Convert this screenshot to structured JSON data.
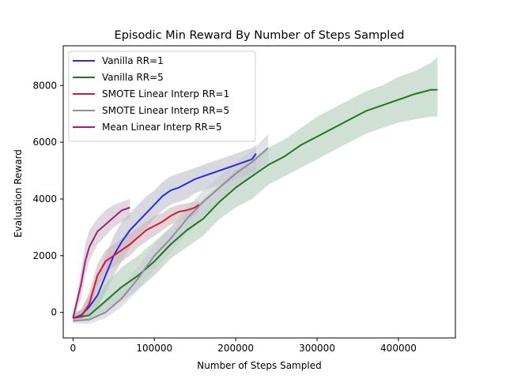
{
  "chart_data": {
    "type": "line",
    "title": "Episodic Min Reward By Number of Steps Sampled",
    "xlabel": "Number of Steps Sampled",
    "ylabel": "Evaluation Reward",
    "xlim": [
      -12000,
      470000
    ],
    "ylim": [
      -900,
      9400
    ],
    "xticks": [
      0,
      100000,
      200000,
      300000,
      400000
    ],
    "xtick_labels": [
      "0",
      "100000",
      "200000",
      "300000",
      "400000"
    ],
    "yticks": [
      0,
      2000,
      4000,
      6000,
      8000
    ],
    "ytick_labels": [
      "0",
      "2000",
      "4000",
      "6000",
      "8000"
    ],
    "grid": false,
    "legend_position": "upper-left",
    "series": [
      {
        "name": "Vanilla RR=1",
        "color": "#2a2ae0",
        "band_color": "#b8b8c8",
        "x": [
          0,
          10000,
          20000,
          30000,
          40000,
          50000,
          60000,
          70000,
          80000,
          90000,
          100000,
          110000,
          120000,
          130000,
          140000,
          150000,
          160000,
          170000,
          180000,
          190000,
          200000,
          210000,
          220000,
          225000
        ],
        "y": [
          -200,
          -100,
          200,
          600,
          1300,
          2000,
          2500,
          2900,
          3200,
          3500,
          3800,
          4100,
          4300,
          4400,
          4550,
          4700,
          4800,
          4900,
          5000,
          5100,
          5200,
          5300,
          5400,
          5600
        ],
        "band_low": [
          -300,
          -250,
          -100,
          200,
          700,
          1300,
          1800,
          2300,
          2700,
          3000,
          3300,
          3600,
          3800,
          3900,
          4000,
          4200,
          4300,
          4400,
          4500,
          4600,
          4700,
          4800,
          4900,
          5000
        ],
        "band_high": [
          -100,
          100,
          600,
          1200,
          2000,
          2700,
          3200,
          3500,
          3800,
          4100,
          4300,
          4600,
          4800,
          4900,
          5000,
          5100,
          5200,
          5300,
          5400,
          5500,
          5600,
          5700,
          5800,
          5900
        ]
      },
      {
        "name": "Vanilla RR=5",
        "color": "#1a7a1a",
        "band_color": "#a9c7b0",
        "x": [
          0,
          20000,
          40000,
          60000,
          80000,
          100000,
          120000,
          140000,
          160000,
          180000,
          200000,
          220000,
          240000,
          260000,
          280000,
          300000,
          320000,
          340000,
          360000,
          380000,
          400000,
          420000,
          440000,
          448000
        ],
        "y": [
          -200,
          -100,
          400,
          900,
          1300,
          1800,
          2400,
          2900,
          3300,
          3900,
          4400,
          4800,
          5200,
          5500,
          5900,
          6200,
          6500,
          6800,
          7100,
          7300,
          7500,
          7700,
          7850,
          7850
        ],
        "band_low": [
          -300,
          -300,
          0,
          400,
          800,
          1300,
          1900,
          2300,
          2700,
          3300,
          3700,
          4000,
          4500,
          4800,
          5100,
          5400,
          5700,
          6000,
          6300,
          6500,
          6700,
          6800,
          6900,
          6900
        ],
        "band_high": [
          0,
          200,
          1000,
          1600,
          2000,
          2500,
          3000,
          3500,
          4000,
          4500,
          5000,
          5400,
          5800,
          6100,
          6500,
          6900,
          7200,
          7500,
          7800,
          8000,
          8300,
          8500,
          8800,
          9000
        ]
      },
      {
        "name": "SMOTE Linear Interp RR=1",
        "color": "#dc143c",
        "band_color": "#c8b0b8",
        "x": [
          0,
          10000,
          20000,
          30000,
          40000,
          50000,
          60000,
          70000,
          80000,
          90000,
          100000,
          110000,
          120000,
          130000,
          140000,
          150000,
          155000
        ],
        "y": [
          -200,
          -150,
          300,
          1300,
          1800,
          2000,
          2200,
          2400,
          2650,
          2900,
          3050,
          3200,
          3400,
          3550,
          3600,
          3700,
          3800
        ],
        "band_low": [
          -300,
          -300,
          0,
          900,
          1400,
          1600,
          1800,
          2000,
          2300,
          2500,
          2700,
          2900,
          3100,
          3200,
          3300,
          3400,
          3500
        ],
        "band_high": [
          -100,
          100,
          700,
          1700,
          2200,
          2400,
          2600,
          2800,
          3000,
          3200,
          3400,
          3500,
          3700,
          3800,
          3850,
          3900,
          3950
        ]
      },
      {
        "name": "SMOTE Linear Interp RR=5",
        "color": "#8c8c9c",
        "band_color": "#c8c8d2",
        "x": [
          0,
          20000,
          40000,
          60000,
          80000,
          100000,
          120000,
          140000,
          160000,
          180000,
          200000,
          220000,
          240000
        ],
        "y": [
          -300,
          -250,
          0,
          500,
          1200,
          2000,
          2600,
          3300,
          3900,
          4400,
          4900,
          5300,
          5800
        ],
        "band_low": [
          -400,
          -400,
          -200,
          200,
          800,
          1500,
          2100,
          2800,
          3400,
          3900,
          4400,
          4800,
          5300
        ],
        "band_high": [
          -200,
          0,
          400,
          900,
          1600,
          2400,
          3000,
          3700,
          4300,
          4800,
          5300,
          5700,
          6300
        ]
      },
      {
        "name": "Mean Linear Interp RR=5",
        "color": "#a01e7a",
        "band_color": "#c8b8c4",
        "x": [
          0,
          10000,
          15000,
          20000,
          30000,
          40000,
          50000,
          60000,
          70000
        ],
        "y": [
          -200,
          1000,
          1800,
          2300,
          2850,
          3100,
          3350,
          3600,
          3700
        ],
        "band_low": [
          -300,
          500,
          1300,
          1800,
          2400,
          2700,
          3000,
          3200,
          3300
        ],
        "band_high": [
          -100,
          1500,
          2400,
          2900,
          3300,
          3600,
          3800,
          3900,
          4000
        ]
      }
    ]
  }
}
